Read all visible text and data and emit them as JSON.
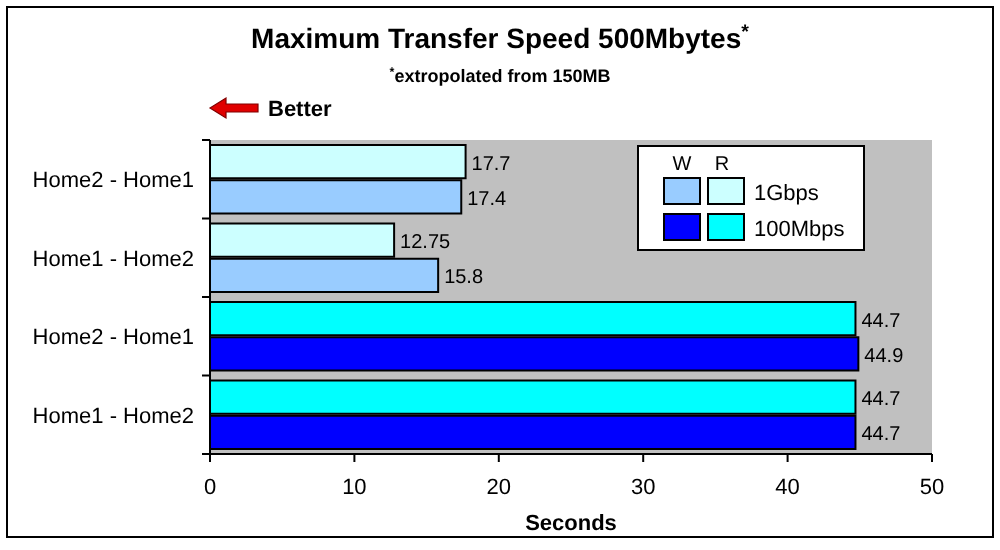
{
  "chart_data": {
    "type": "bar",
    "orientation": "horizontal",
    "title": "Maximum Transfer Speed 500Mbytes$^{*}$",
    "subtitle": "$^{*}$extropolated from 150MB",
    "xlabel": "Seconds",
    "categories": [
      "Home2 - Home1",
      "Home1 - Home2",
      "Home2 - Home1",
      "Home1 - Home2"
    ],
    "series": [
      {
        "name": "1Gbps",
        "color": "#ccffff",
        "values": [
          17.7,
          12.75,
          null,
          null
        ]
      },
      {
        "color": "#99ccff",
        "values": [
          17.4,
          15.8,
          null,
          null
        ]
      },
      {
        "name": "100Mbps",
        "color": "#00ffff",
        "values": [
          null,
          null,
          44.7,
          44.7
        ]
      },
      {
        "color": "#0000ff",
        "values": [
          null,
          null,
          44.9,
          44.7
        ]
      }
    ],
    "xlim": [
      0,
      50
    ],
    "xticks": [
      0,
      10,
      20,
      30,
      40,
      50
    ],
    "data_labels": true,
    "legend": "top right",
    "grid": false,
    "annotations": [
      "Better",
      "W",
      "R"
    ]
  }
}
